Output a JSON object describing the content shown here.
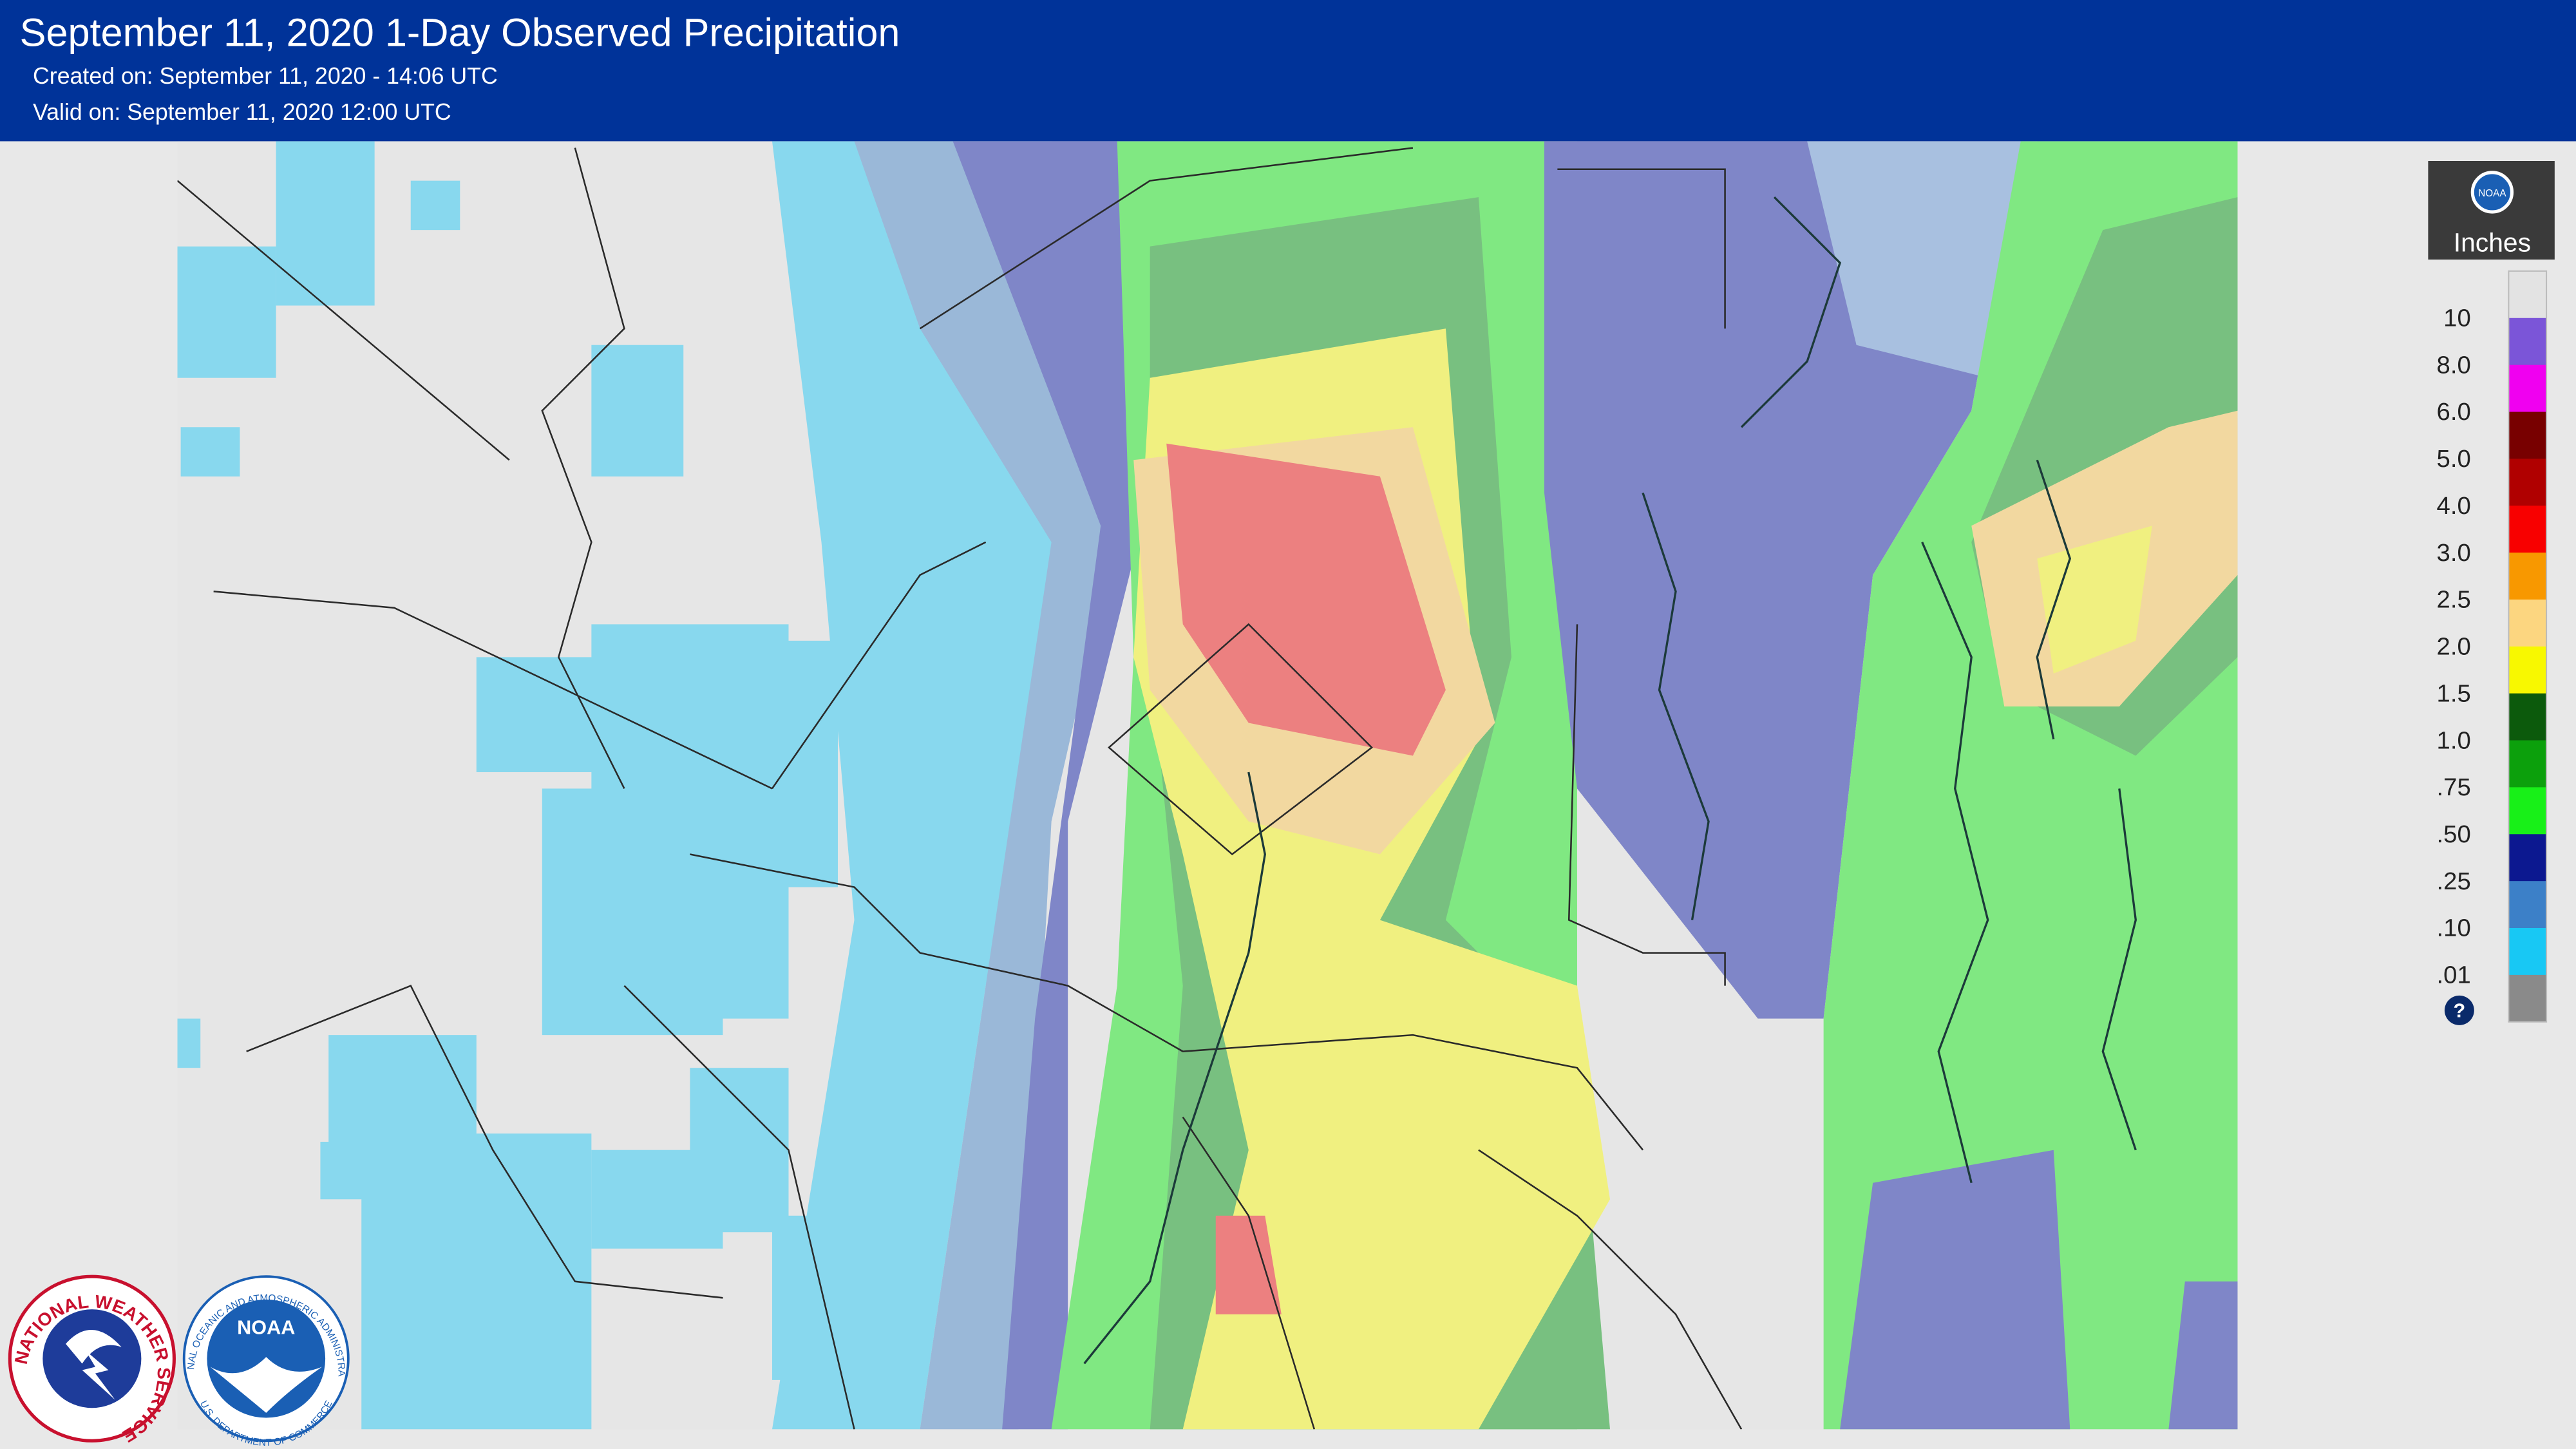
{
  "header": {
    "title": "September 11, 2020 1-Day Observed Precipitation",
    "created": "Created on: September 11, 2020 - 14:06 UTC",
    "valid": "Valid on: September 11, 2020 12:00 UTC"
  },
  "legend": {
    "unit": "Inches",
    "logo": "NOAA",
    "labels": [
      "10",
      "8.0",
      "6.0",
      "5.0",
      "4.0",
      "3.0",
      "2.5",
      "2.0",
      "1.5",
      "1.0",
      ".75",
      ".50",
      ".25",
      ".10",
      ".01"
    ],
    "colors": [
      "#e3e3e3",
      "#7b55d8",
      "#f000f0",
      "#780000",
      "#b00000",
      "#f80000",
      "#f89800",
      "#fcd680",
      "#f8f800",
      "#0c5a0c",
      "#0ca00c",
      "#18f018",
      "#0c1890",
      "#3c80c8",
      "#18c8f4",
      "#8a8a8a"
    ],
    "help": "?"
  },
  "logos": {
    "nws": "NATIONAL WEATHER SERVICE",
    "noaa": "NOAA",
    "noaa_ring_top": "NATIONAL OCEANIC AND ATMOSPHERIC ADMINISTRATION",
    "noaa_ring_bottom": "U.S. DEPARTMENT OF COMMERCE"
  }
}
